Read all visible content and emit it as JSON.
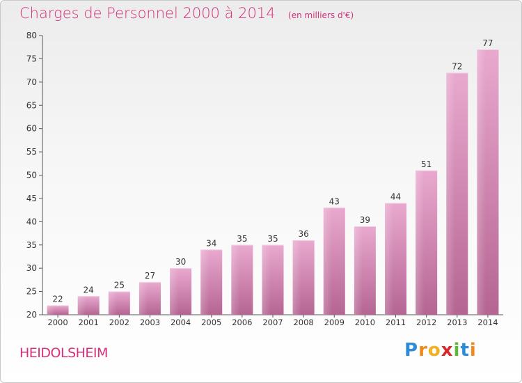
{
  "title": "Charges de Personnel 2000 à 2014",
  "subtitle": "(en milliers d'€)",
  "town": "HEIDOLSHEIM",
  "brand": {
    "letters": [
      "P",
      "r",
      "o",
      "x",
      "i",
      "t",
      "i"
    ],
    "colors": [
      "#2e8bd8",
      "#f08a1c",
      "#f2b01e",
      "#d62a2a",
      "#5fb83a",
      "#2e8bd8",
      "#f08a1c"
    ]
  },
  "chart_data": {
    "type": "bar",
    "title": "Charges de Personnel 2000 à 2014",
    "subtitle": "(en milliers d'€)",
    "categories": [
      "2000",
      "2001",
      "2002",
      "2003",
      "2004",
      "2005",
      "2006",
      "2007",
      "2008",
      "2009",
      "2010",
      "2011",
      "2012",
      "2013",
      "2014"
    ],
    "values": [
      22,
      24,
      25,
      27,
      30,
      34,
      35,
      35,
      36,
      43,
      39,
      44,
      51,
      72,
      77
    ],
    "ylim": [
      20,
      80
    ],
    "yticks": [
      20,
      25,
      30,
      35,
      40,
      45,
      50,
      55,
      60,
      65,
      70,
      75,
      80
    ],
    "grid": false,
    "colors": {
      "bar": "#d98cb6",
      "text": "#333333",
      "axis": "#555555"
    }
  }
}
